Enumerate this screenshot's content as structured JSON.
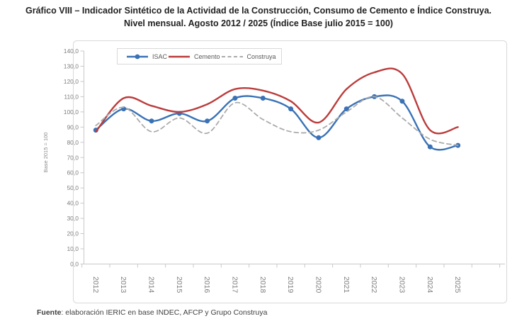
{
  "title": {
    "line1": "Gráfico VIII – Indicador Sintético de la Actividad de la Construcción, Consumo de Cemento e Índice Construya.",
    "line2": "Nivel mensual. Agosto 2012 / 2025 (Índice Base julio 2015 = 100)"
  },
  "footer": {
    "bold": "Fuente",
    "rest": ": elaboración IERIC en base INDEC, AFCP y Grupo Construya"
  },
  "colors": {
    "isac": "#3a72b5",
    "cemento": "#bb3c3c",
    "construya": "#ababab",
    "axis_line": "#c9c9c9",
    "tick_text": "#7f7f7f",
    "frame_border": "#d9d9d9",
    "legend_text": "#595959"
  },
  "y_axis": {
    "title": "Base 2015 = 100",
    "tick_labels": [
      "0,0",
      "10,0",
      "20,0",
      "30,0",
      "40,0",
      "50,0",
      "60,0",
      "70,0",
      "80,0",
      "90,0",
      "100,0",
      "110,0",
      "120,0",
      "130,0",
      "140,0"
    ],
    "min": 0,
    "max": 140,
    "step": 10
  },
  "chart_data": {
    "type": "line",
    "title": "Indicador Sintético de la Actividad de la Construcción, Consumo de Cemento e Índice Construya. Nivel mensual. Agosto 2012 / 2025 (Índice Base julio 2015 = 100)",
    "categories": [
      "2012",
      "2013",
      "2014",
      "2015",
      "2016",
      "2017",
      "2018",
      "2019",
      "2020",
      "2021",
      "2022",
      "2023",
      "2024",
      "2025"
    ],
    "series": [
      {
        "name": "ISAC",
        "color": "#3a72b5",
        "style": "line-markers",
        "values": [
          88,
          102,
          94,
          99,
          94,
          109,
          109,
          102,
          83,
          102,
          110,
          107,
          77,
          78
        ]
      },
      {
        "name": "Cemento",
        "color": "#bb3c3c",
        "style": "line",
        "values": [
          87,
          109,
          104,
          100,
          105,
          115,
          114,
          107,
          93,
          115,
          126,
          125,
          88,
          90
        ]
      },
      {
        "name": "Construya",
        "color": "#ababab",
        "style": "dashed",
        "values": [
          91,
          103,
          87,
          96,
          86,
          106,
          95,
          87,
          88,
          100,
          110,
          96,
          82,
          78
        ]
      }
    ],
    "xlabel": "",
    "ylabel": "Base 2015 = 100",
    "ylim": [
      0,
      140
    ],
    "ytick_step": 10,
    "grid": false,
    "legend_position": "top"
  }
}
